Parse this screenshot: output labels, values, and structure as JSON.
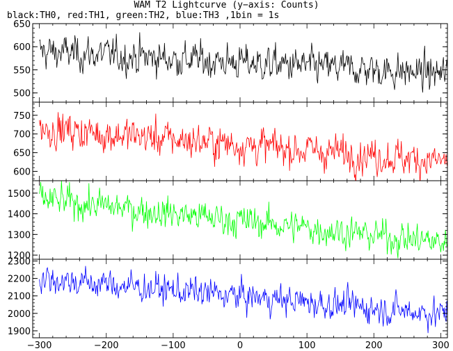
{
  "title": "WAM T2 Lightcurve (y−axis: Counts)",
  "subtitle": "black:TH0, red:TH1, green:TH2, blue:TH3 ,1bin = 1s",
  "chart_data": [
    {
      "type": "line",
      "series": [
        {
          "name": "TH0",
          "color": "#000000",
          "start": 590,
          "end": 540,
          "noise": 22
        }
      ],
      "x_range": [
        -310,
        310
      ],
      "ylim": [
        480,
        650
      ],
      "yticks": [
        500,
        550,
        600,
        650
      ],
      "ytick_labels": [
        "500",
        "550",
        "600",
        "650"
      ]
    },
    {
      "type": "line",
      "series": [
        {
          "name": "TH1",
          "color": "#ff0000",
          "start": 715,
          "end": 625,
          "noise": 28
        }
      ],
      "x_range": [
        -310,
        310
      ],
      "ylim": [
        575,
        785
      ],
      "yticks": [
        600,
        650,
        700,
        750
      ],
      "ytick_labels": [
        "600",
        "650",
        "700",
        "750"
      ]
    },
    {
      "type": "line",
      "series": [
        {
          "name": "TH2",
          "color": "#00ff00",
          "start": 1470,
          "end": 1255,
          "noise": 45
        }
      ],
      "x_range": [
        -310,
        310
      ],
      "ylim": [
        1180,
        1560
      ],
      "yticks": [
        1200,
        1300,
        1400,
        1500
      ],
      "ytick_labels": [
        "1200",
        "1300",
        "1400",
        "1500"
      ]
    },
    {
      "type": "line",
      "series": [
        {
          "name": "TH3",
          "color": "#0000ff",
          "start": 2200,
          "end": 1990,
          "noise": 50
        }
      ],
      "x_range": [
        -310,
        310
      ],
      "ylim": [
        1860,
        2310
      ],
      "yticks": [
        1900,
        2000,
        2100,
        2200,
        2300
      ],
      "ytick_labels": [
        "1900",
        "2000",
        "2100",
        "2200",
        "2300"
      ],
      "xticks": [
        -300,
        -200,
        -100,
        0,
        100,
        200,
        300
      ],
      "xtick_labels": [
        "−300",
        "−200",
        "−100",
        "0",
        "100",
        "200",
        "300"
      ]
    }
  ]
}
